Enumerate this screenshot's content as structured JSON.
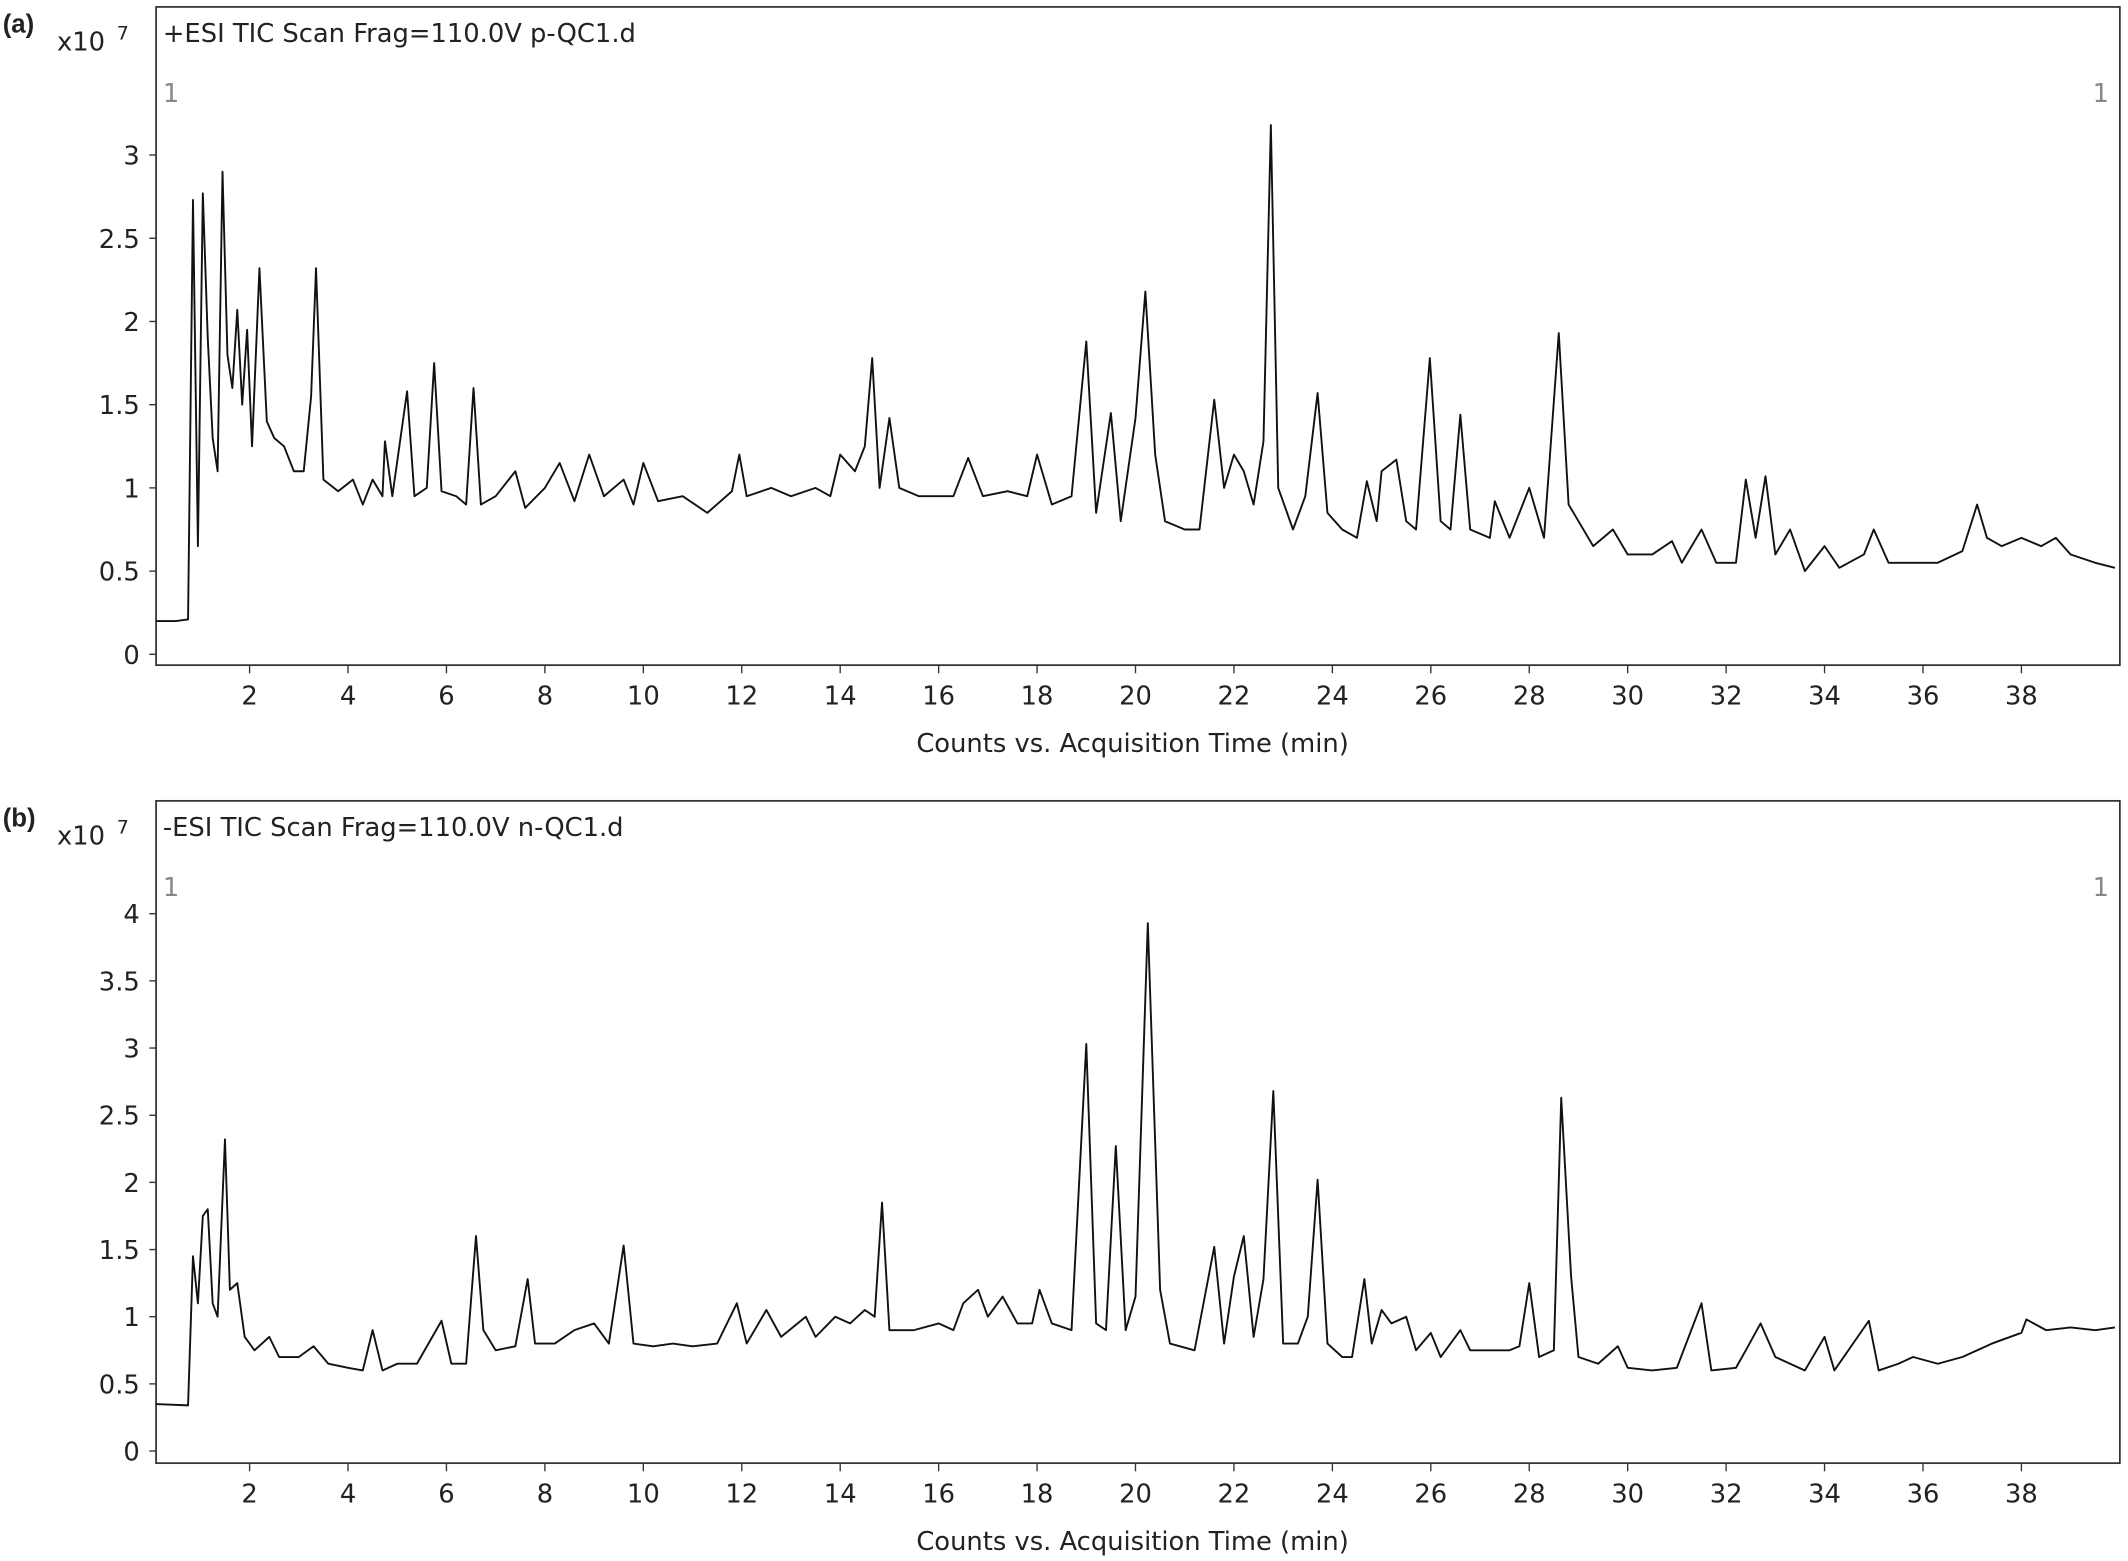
{
  "chart_data": [
    {
      "type": "line",
      "panel_label": "(a)",
      "multiplier": "x10",
      "multiplier_exponent": "7",
      "title": "+ESI TIC Scan Frag=110.0V p-QC1.d",
      "markers": [
        "1",
        "1"
      ],
      "xlabel": "Counts vs. Acquisition Time (min)",
      "color": "#111111",
      "grid": false,
      "xlim": [
        0.1,
        40
      ],
      "ylim": [
        -0.065,
        3.89
      ],
      "xticks": [
        2,
        4,
        6,
        8,
        10,
        12,
        14,
        16,
        18,
        20,
        22,
        24,
        26,
        28,
        30,
        32,
        34,
        36,
        38
      ],
      "yticks": [
        0,
        0.5,
        1,
        1.5,
        2,
        2.5,
        3
      ],
      "x": [
        0.1,
        0.5,
        0.75,
        0.85,
        0.95,
        1.05,
        1.15,
        1.25,
        1.35,
        1.45,
        1.55,
        1.65,
        1.75,
        1.85,
        1.95,
        2.05,
        2.2,
        2.35,
        2.5,
        2.7,
        2.9,
        3.1,
        3.25,
        3.35,
        3.5,
        3.8,
        4.1,
        4.3,
        4.5,
        4.7,
        4.75,
        4.9,
        5.2,
        5.35,
        5.6,
        5.75,
        5.9,
        6.2,
        6.4,
        6.55,
        6.7,
        7.0,
        7.4,
        7.6,
        8.0,
        8.3,
        8.6,
        8.9,
        9.2,
        9.6,
        9.8,
        10.0,
        10.3,
        10.8,
        11.3,
        11.8,
        11.95,
        12.1,
        12.6,
        13.0,
        13.5,
        13.8,
        14.0,
        14.3,
        14.5,
        14.65,
        14.8,
        15.0,
        15.2,
        15.6,
        16.0,
        16.3,
        16.6,
        16.9,
        17.4,
        17.8,
        18.0,
        18.3,
        18.7,
        19.0,
        19.2,
        19.5,
        19.7,
        20.0,
        20.2,
        20.4,
        20.6,
        21.0,
        21.3,
        21.6,
        21.8,
        22.0,
        22.2,
        22.4,
        22.6,
        22.75,
        22.9,
        23.2,
        23.45,
        23.7,
        23.9,
        24.2,
        24.5,
        24.7,
        24.9,
        25.0,
        25.3,
        25.5,
        25.7,
        25.98,
        26.2,
        26.4,
        26.6,
        26.8,
        27.2,
        27.3,
        27.6,
        28.0,
        28.3,
        28.6,
        28.8,
        29.0,
        29.3,
        29.7,
        30.0,
        30.5,
        30.9,
        31.1,
        31.5,
        31.8,
        32.2,
        32.4,
        32.6,
        32.8,
        33.0,
        33.3,
        33.6,
        34.0,
        34.3,
        34.8,
        35.0,
        35.3,
        35.8,
        36.3,
        36.8,
        37.1,
        37.3,
        37.6,
        38.0,
        38.4,
        38.7,
        39.0,
        39.5,
        39.9
      ],
      "values": [
        0.2,
        0.2,
        0.21,
        2.73,
        0.65,
        2.77,
        1.9,
        1.3,
        1.1,
        2.9,
        1.8,
        1.6,
        2.07,
        1.5,
        1.95,
        1.25,
        2.32,
        1.4,
        1.3,
        1.25,
        1.1,
        1.1,
        1.55,
        2.32,
        1.05,
        0.98,
        1.05,
        0.9,
        1.05,
        0.95,
        1.28,
        0.95,
        1.58,
        0.95,
        1.0,
        1.75,
        0.98,
        0.95,
        0.9,
        1.6,
        0.9,
        0.95,
        1.1,
        0.88,
        1.0,
        1.15,
        0.92,
        1.2,
        0.95,
        1.05,
        0.9,
        1.15,
        0.92,
        0.95,
        0.85,
        0.98,
        1.2,
        0.95,
        1.0,
        0.95,
        1.0,
        0.95,
        1.2,
        1.1,
        1.25,
        1.78,
        1.0,
        1.42,
        1.0,
        0.95,
        0.95,
        0.95,
        1.18,
        0.95,
        0.98,
        0.95,
        1.2,
        0.9,
        0.95,
        1.88,
        0.85,
        1.45,
        0.8,
        1.42,
        2.18,
        1.2,
        0.8,
        0.75,
        0.75,
        1.53,
        1.0,
        1.2,
        1.1,
        0.9,
        1.28,
        3.18,
        1.0,
        0.75,
        0.95,
        1.57,
        0.85,
        0.75,
        0.7,
        1.04,
        0.8,
        1.1,
        1.17,
        0.8,
        0.75,
        1.78,
        0.8,
        0.75,
        1.44,
        0.75,
        0.7,
        0.92,
        0.7,
        1.0,
        0.7,
        1.93,
        0.9,
        0.8,
        0.65,
        0.75,
        0.6,
        0.6,
        0.68,
        0.55,
        0.75,
        0.55,
        0.55,
        1.05,
        0.7,
        1.07,
        0.6,
        0.75,
        0.5,
        0.65,
        0.52,
        0.6,
        0.75,
        0.55,
        0.55,
        0.55,
        0.62,
        0.9,
        0.7,
        0.65,
        0.7,
        0.65,
        0.7,
        0.6,
        0.55,
        0.52
      ]
    },
    {
      "type": "line",
      "panel_label": "(b)",
      "multiplier": "x10",
      "multiplier_exponent": "7",
      "title": "-ESI TIC Scan Frag=110.0V n-QC1.d",
      "markers": [
        "1",
        "1"
      ],
      "xlabel": "Counts vs. Acquisition Time (min)",
      "color": "#111111",
      "grid": false,
      "xlim": [
        0.1,
        40
      ],
      "ylim": [
        -0.09,
        4.84
      ],
      "xticks": [
        2,
        4,
        6,
        8,
        10,
        12,
        14,
        16,
        18,
        20,
        22,
        24,
        26,
        28,
        30,
        32,
        34,
        36,
        38
      ],
      "yticks": [
        0,
        0.5,
        1,
        1.5,
        2,
        2.5,
        3,
        3.5,
        4
      ],
      "x": [
        0.1,
        0.75,
        0.85,
        0.95,
        1.05,
        1.15,
        1.25,
        1.35,
        1.5,
        1.6,
        1.75,
        1.9,
        2.1,
        2.4,
        2.6,
        3.0,
        3.3,
        3.6,
        4.0,
        4.3,
        4.5,
        4.7,
        5.0,
        5.4,
        5.9,
        6.1,
        6.4,
        6.6,
        6.75,
        7.0,
        7.4,
        7.65,
        7.8,
        8.2,
        8.6,
        9.0,
        9.3,
        9.6,
        9.8,
        10.2,
        10.6,
        11.0,
        11.5,
        11.9,
        12.1,
        12.5,
        12.8,
        13.3,
        13.5,
        13.9,
        14.2,
        14.5,
        14.7,
        14.85,
        15.0,
        15.5,
        16.0,
        16.3,
        16.5,
        16.8,
        17.0,
        17.3,
        17.6,
        17.9,
        18.05,
        18.3,
        18.7,
        19.0,
        19.2,
        19.4,
        19.6,
        19.8,
        20.0,
        20.25,
        20.5,
        20.7,
        21.2,
        21.6,
        21.8,
        22.0,
        22.2,
        22.4,
        22.6,
        22.8,
        23.0,
        23.3,
        23.5,
        23.7,
        23.9,
        24.2,
        24.4,
        24.65,
        24.8,
        25.0,
        25.2,
        25.5,
        25.7,
        26.0,
        26.2,
        26.6,
        26.8,
        27.3,
        27.6,
        27.8,
        28.0,
        28.2,
        28.5,
        28.65,
        28.85,
        29.0,
        29.4,
        29.8,
        30.0,
        30.5,
        31.0,
        31.5,
        31.7,
        32.2,
        32.4,
        32.7,
        33.0,
        33.3,
        33.6,
        34.0,
        34.2,
        34.9,
        35.1,
        35.5,
        35.8,
        36.3,
        36.8,
        37.4,
        38.0,
        38.1,
        38.5,
        39.0,
        39.5,
        39.9
      ],
      "values": [
        0.35,
        0.34,
        1.45,
        1.1,
        1.75,
        1.8,
        1.1,
        1.0,
        2.32,
        1.2,
        1.25,
        0.85,
        0.75,
        0.85,
        0.7,
        0.7,
        0.78,
        0.65,
        0.62,
        0.6,
        0.9,
        0.6,
        0.65,
        0.65,
        0.97,
        0.65,
        0.65,
        1.6,
        0.9,
        0.75,
        0.78,
        1.28,
        0.8,
        0.8,
        0.9,
        0.95,
        0.8,
        1.53,
        0.8,
        0.78,
        0.8,
        0.78,
        0.8,
        1.1,
        0.8,
        1.05,
        0.85,
        1.0,
        0.85,
        1.0,
        0.95,
        1.05,
        1.0,
        1.85,
        0.9,
        0.9,
        0.95,
        0.9,
        1.1,
        1.2,
        1.0,
        1.15,
        0.95,
        0.95,
        1.2,
        0.95,
        0.9,
        3.03,
        0.95,
        0.9,
        2.27,
        0.9,
        1.15,
        3.93,
        1.2,
        0.8,
        0.75,
        1.52,
        0.8,
        1.3,
        1.6,
        0.85,
        1.28,
        2.68,
        0.8,
        0.8,
        1.0,
        2.02,
        0.8,
        0.7,
        0.7,
        1.28,
        0.8,
        1.05,
        0.95,
        1.0,
        0.75,
        0.88,
        0.7,
        0.9,
        0.75,
        0.75,
        0.75,
        0.78,
        1.25,
        0.7,
        0.75,
        2.63,
        1.3,
        0.7,
        0.65,
        0.78,
        0.62,
        0.6,
        0.62,
        1.1,
        0.6,
        0.62,
        0.75,
        0.95,
        0.7,
        0.65,
        0.6,
        0.85,
        0.6,
        0.97,
        0.6,
        0.65,
        0.7,
        0.65,
        0.7,
        0.8,
        0.88,
        0.98,
        0.9,
        0.92,
        0.9,
        0.92
      ]
    }
  ]
}
